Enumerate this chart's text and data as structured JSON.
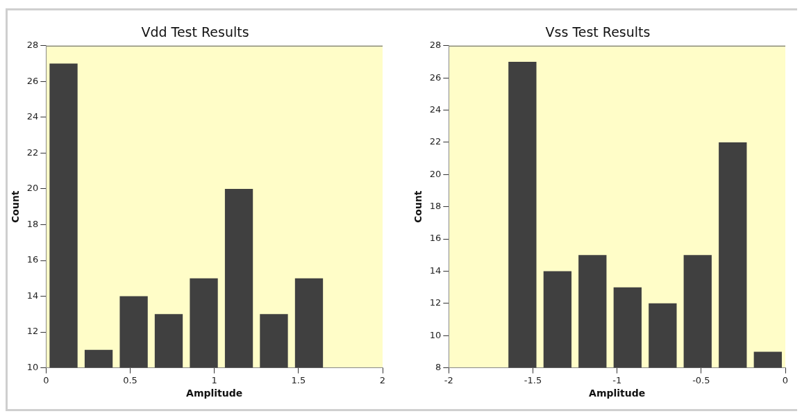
{
  "chart_data": [
    {
      "type": "histogram",
      "title": "Vdd Test Results",
      "xlabel": "Amplitude",
      "ylabel": "Count",
      "color": "#404040",
      "bins": [
        0,
        0.208,
        0.417,
        0.625,
        0.833,
        1.042,
        1.25,
        1.458,
        1.667
      ],
      "values": [
        27,
        11,
        14,
        13,
        15,
        20,
        13,
        15
      ],
      "xlim": [
        0,
        2
      ],
      "xticks": [
        0,
        0.5,
        1,
        1.5,
        2
      ],
      "ylim": [
        10,
        28
      ],
      "yticks": [
        10,
        12,
        14,
        16,
        18,
        20,
        22,
        24,
        26,
        28
      ]
    },
    {
      "type": "histogram",
      "title": "Vss Test Results",
      "xlabel": "Amplitude",
      "ylabel": "Count",
      "color": "#404040",
      "bins": [
        -1.667,
        -1.458,
        -1.25,
        -1.042,
        -0.833,
        -0.625,
        -0.417,
        -0.208,
        0
      ],
      "values": [
        27,
        14,
        15,
        13,
        12,
        15,
        22,
        9
      ],
      "xlim": [
        -2,
        0
      ],
      "xticks": [
        -2,
        -1.5,
        -1,
        -0.5,
        0
      ],
      "ylim": [
        8,
        28
      ],
      "yticks": [
        8,
        10,
        12,
        14,
        16,
        18,
        20,
        22,
        24,
        26,
        28
      ]
    }
  ]
}
